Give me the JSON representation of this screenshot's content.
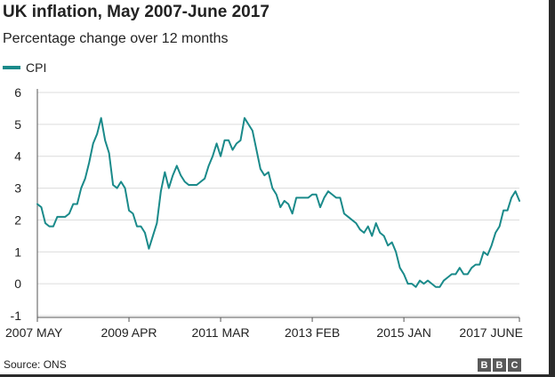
{
  "title": "UK inflation, May 2007-June 2017",
  "subtitle": "Percentage change over 12 months",
  "source": "Source: ONS",
  "logo": "BBC",
  "colors": {
    "line": "#1a8a8a",
    "grid": "#dcdcdc",
    "axis": "#555555",
    "text": "#222222",
    "frame": "#2b2b2b",
    "logo_bg": "#595959"
  },
  "chart_data": {
    "type": "line",
    "title": "UK inflation, May 2007-June 2017",
    "subtitle": "Percentage change over 12 months",
    "xlabel": "",
    "ylabel": "",
    "ylim": [
      -1,
      6
    ],
    "yticks": [
      -1,
      0,
      1,
      2,
      3,
      4,
      5,
      6
    ],
    "grid": true,
    "legend": "top-left",
    "x_range": [
      "2007-05",
      "2017-06"
    ],
    "xtick_labels": [
      {
        "label": "2007 MAY",
        "x": "2007-05"
      },
      {
        "label": "2009 APR",
        "x": "2009-04"
      },
      {
        "label": "2011 MAR",
        "x": "2011-03"
      },
      {
        "label": "2013 FEB",
        "x": "2013-02"
      },
      {
        "label": "2015 JAN",
        "x": "2015-01"
      },
      {
        "label": "2017 JUNE",
        "x": "2017-06"
      }
    ],
    "series": [
      {
        "name": "CPI",
        "color": "#1a8a8a",
        "start": "2007-05",
        "values": [
          2.5,
          2.4,
          1.9,
          1.8,
          1.8,
          2.1,
          2.1,
          2.1,
          2.2,
          2.5,
          2.5,
          3.0,
          3.3,
          3.8,
          4.4,
          4.7,
          5.2,
          4.5,
          4.1,
          3.1,
          3.0,
          3.2,
          3.0,
          2.3,
          2.2,
          1.8,
          1.8,
          1.6,
          1.1,
          1.5,
          1.9,
          2.9,
          3.5,
          3.0,
          3.4,
          3.7,
          3.4,
          3.2,
          3.1,
          3.1,
          3.1,
          3.2,
          3.3,
          3.7,
          4.0,
          4.4,
          4.0,
          4.5,
          4.5,
          4.2,
          4.4,
          4.5,
          5.2,
          5.0,
          4.8,
          4.2,
          3.6,
          3.4,
          3.5,
          3.0,
          2.8,
          2.4,
          2.6,
          2.5,
          2.2,
          2.7,
          2.7,
          2.7,
          2.7,
          2.8,
          2.8,
          2.4,
          2.7,
          2.9,
          2.8,
          2.7,
          2.7,
          2.2,
          2.1,
          2.0,
          1.9,
          1.7,
          1.6,
          1.8,
          1.5,
          1.9,
          1.6,
          1.5,
          1.2,
          1.3,
          1.0,
          0.5,
          0.3,
          0.0,
          0.0,
          -0.1,
          0.1,
          0.0,
          0.1,
          0.0,
          -0.1,
          -0.1,
          0.1,
          0.2,
          0.3,
          0.3,
          0.5,
          0.3,
          0.3,
          0.5,
          0.6,
          0.6,
          1.0,
          0.9,
          1.2,
          1.6,
          1.8,
          2.3,
          2.3,
          2.7,
          2.9,
          2.6
        ]
      }
    ]
  }
}
